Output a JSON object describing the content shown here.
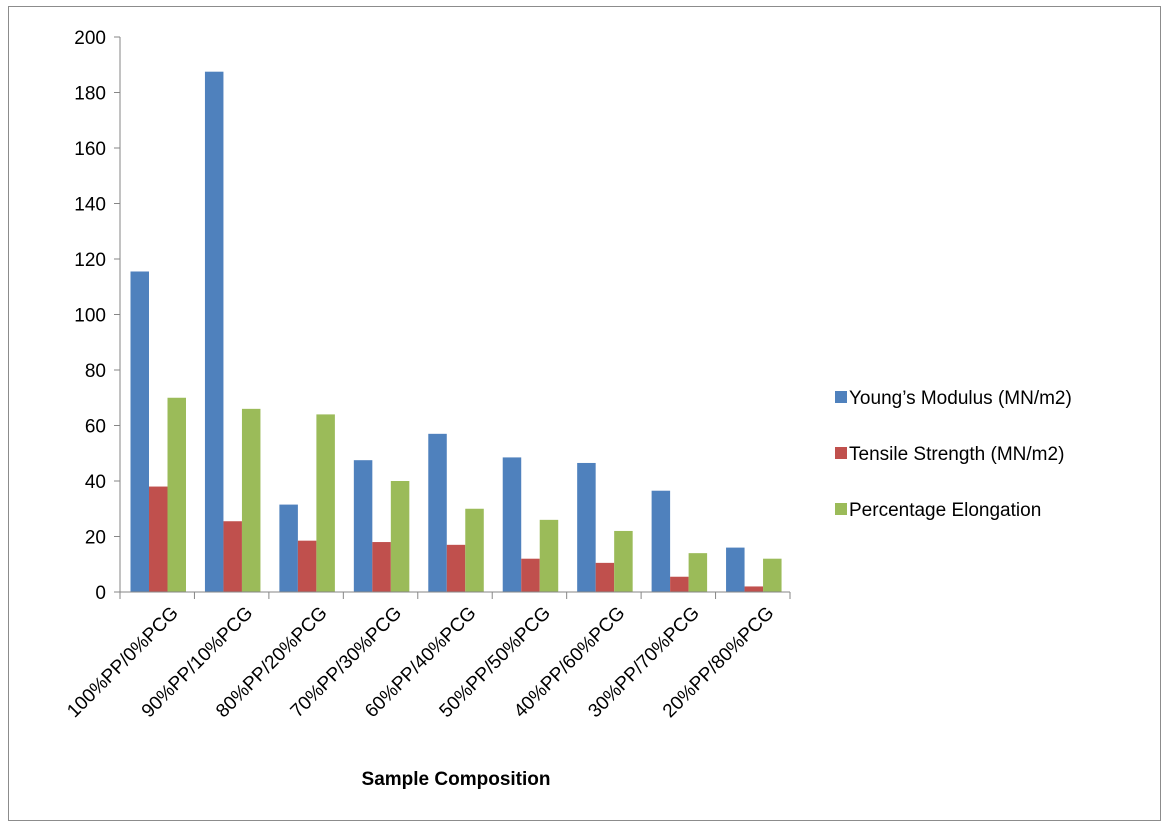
{
  "chart_data": {
    "type": "bar",
    "title": "",
    "xlabel": "Sample Composition",
    "ylabel": "",
    "ylim": [
      0,
      200
    ],
    "yticks": [
      0,
      20,
      40,
      60,
      80,
      100,
      120,
      140,
      160,
      180,
      200
    ],
    "grid": false,
    "legend_position": "right",
    "categories": [
      "100%PP/0%PCG",
      "90%PP/10%PCG",
      "80%PP/20%PCG",
      "70%PP/30%PCG",
      "60%PP/40%PCG",
      "50%PP/50%PCG",
      "40%PP/60%PCG",
      "30%PP/70%PCG",
      "20%PP/80%PCG"
    ],
    "series": [
      {
        "name": "Young’s Modulus (MN/m2)",
        "color": "#4f81bd",
        "values": [
          115.5,
          187.5,
          31.5,
          47.5,
          57,
          48.5,
          46.5,
          36.5,
          16
        ]
      },
      {
        "name": "Tensile Strength (MN/m2)",
        "color": "#c0504d",
        "values": [
          38,
          25.5,
          18.5,
          18,
          17,
          12,
          10.5,
          5.5,
          2
        ]
      },
      {
        "name": "Percentage Elongation",
        "color": "#9bbb59",
        "values": [
          70,
          66,
          64,
          40,
          30,
          26,
          22,
          14,
          12
        ]
      }
    ]
  }
}
